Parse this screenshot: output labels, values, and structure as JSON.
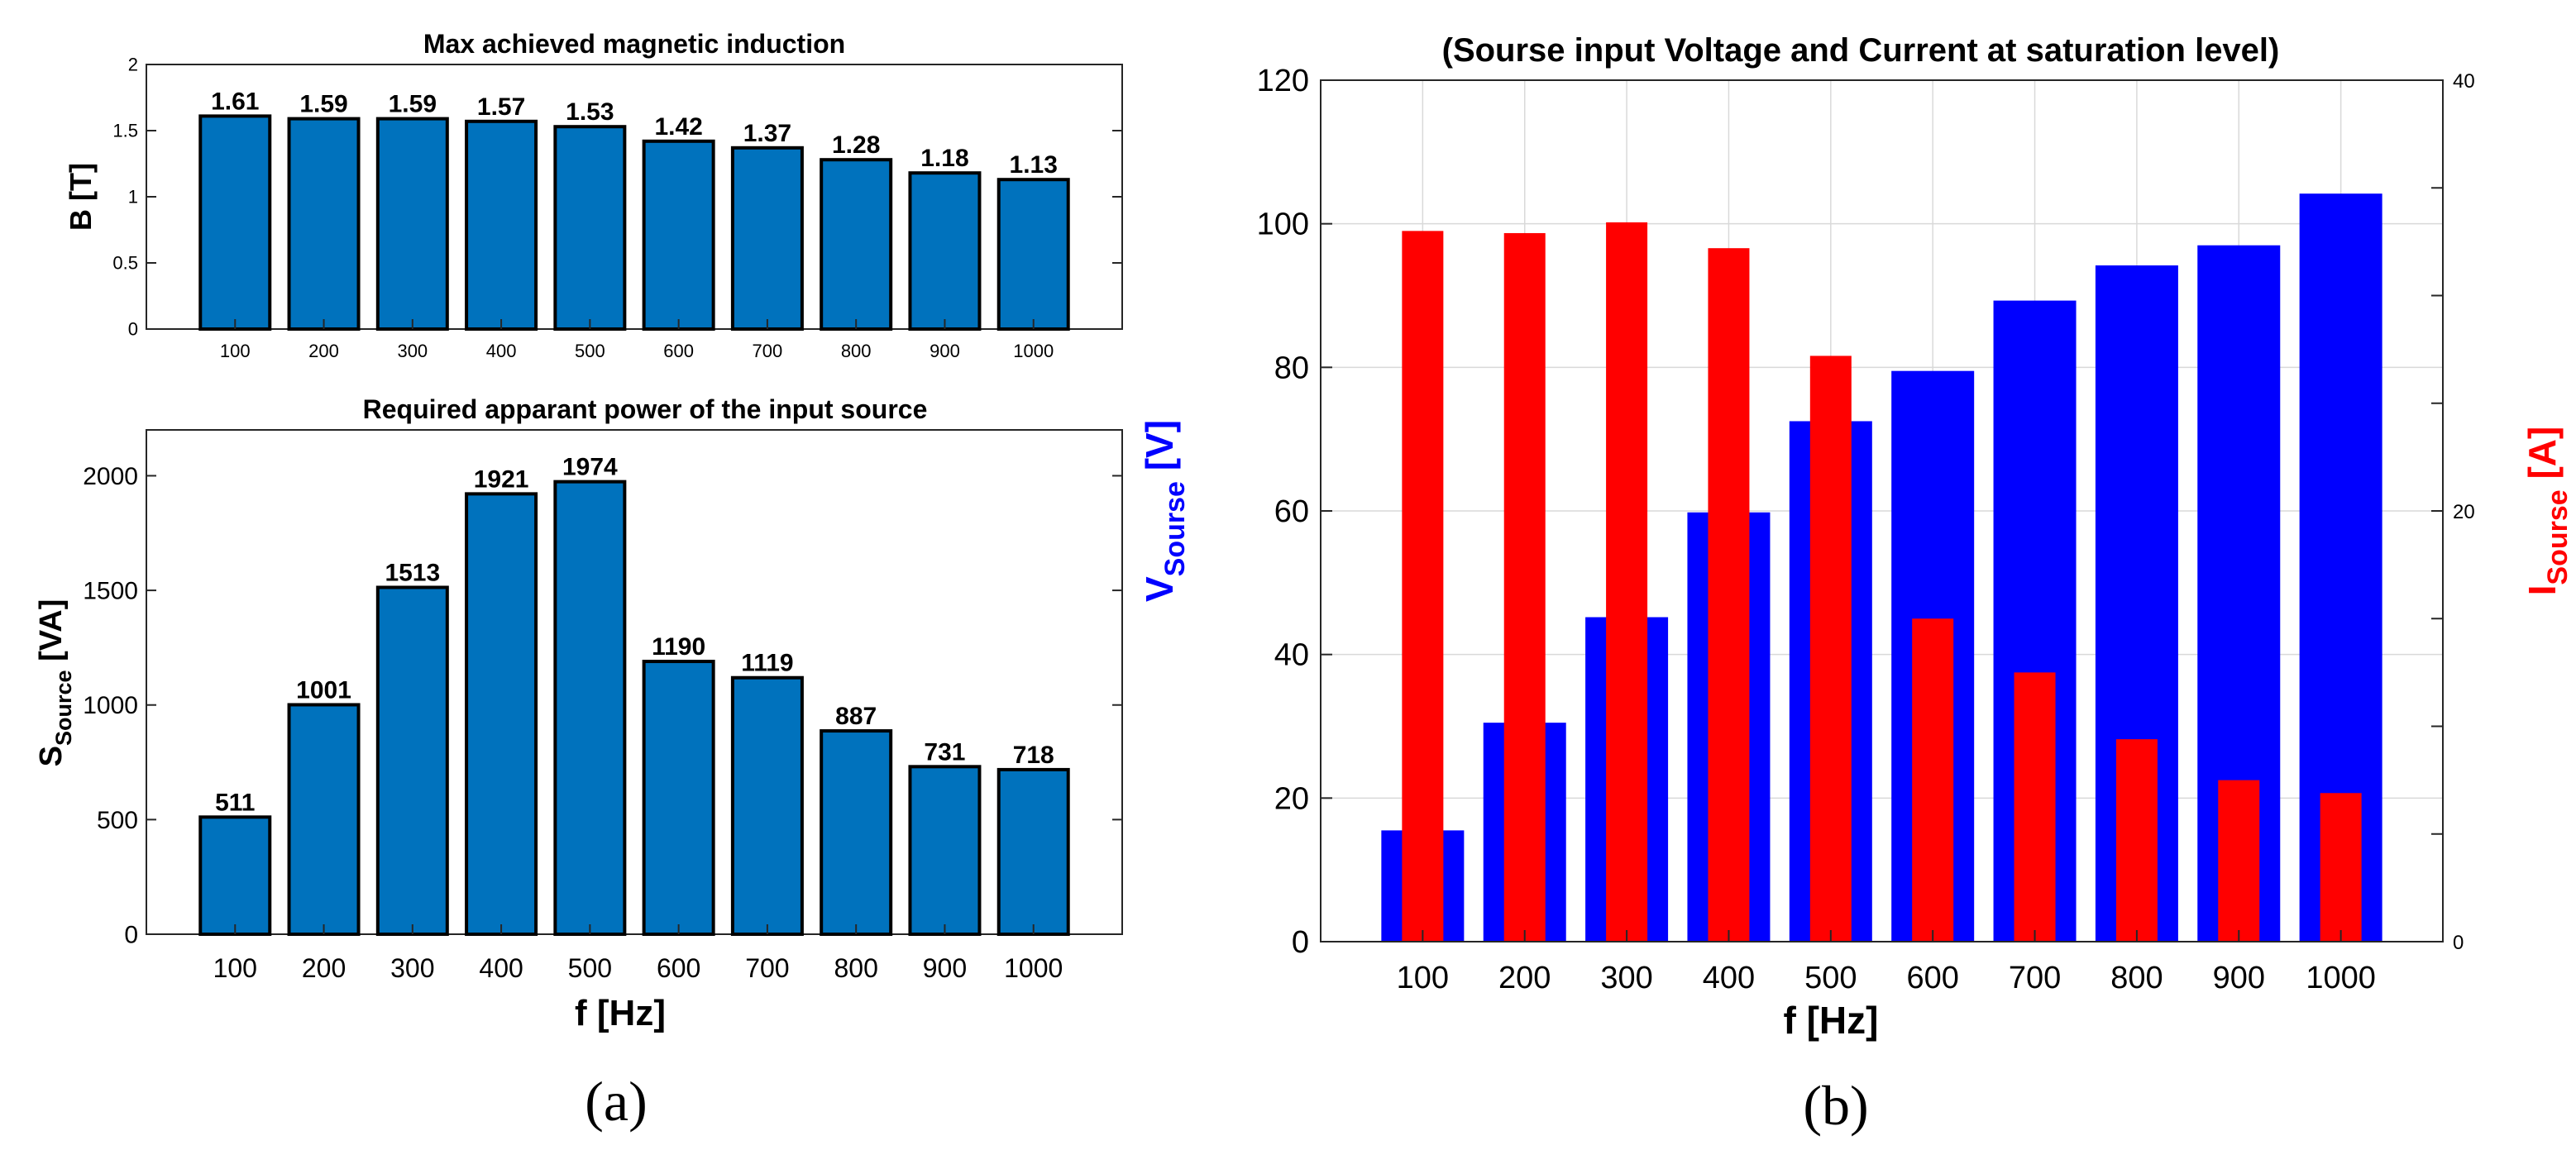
{
  "chart_data": [
    {
      "id": "b",
      "type": "bar",
      "title": "Max achieved magnetic induction",
      "xlabel": "",
      "ylabel": "B [T]",
      "categories": [
        "100",
        "200",
        "300",
        "400",
        "500",
        "600",
        "700",
        "800",
        "900",
        "1000"
      ],
      "values": [
        1.61,
        1.59,
        1.59,
        1.57,
        1.53,
        1.42,
        1.37,
        1.28,
        1.18,
        1.13
      ],
      "data_labels": [
        "1.61",
        "1.59",
        "1.59",
        "1.57",
        "1.53",
        "1.42",
        "1.37",
        "1.28",
        "1.18",
        "1.13"
      ],
      "ylim": [
        0,
        2
      ],
      "yticks": [
        0,
        0.5,
        1,
        1.5,
        2
      ],
      "ytick_labels": [
        "0",
        "0.5",
        "1",
        "1.5",
        "2"
      ],
      "color": "#0072BD"
    },
    {
      "id": "s",
      "type": "bar",
      "title": "Required apparant power of the input source",
      "xlabel": "f [Hz]",
      "ylabel": "S",
      "ylabel_sub": "Source",
      "ylabel_unit": " [VA]",
      "categories": [
        "100",
        "200",
        "300",
        "400",
        "500",
        "600",
        "700",
        "800",
        "900",
        "1000"
      ],
      "values": [
        511,
        1001,
        1513,
        1921,
        1974,
        1190,
        1119,
        887,
        731,
        718
      ],
      "data_labels": [
        "511",
        "1001",
        "1513",
        "1921",
        "1974",
        "1190",
        "1119",
        "887",
        "731",
        "718"
      ],
      "ylim": [
        0,
        2200
      ],
      "yticks": [
        0,
        500,
        1000,
        1500,
        2000
      ],
      "ytick_labels": [
        "0",
        "500",
        "1000",
        "1500",
        "2000"
      ],
      "color": "#0072BD"
    },
    {
      "id": "vi",
      "type": "bar",
      "title": "(Sourse input Voltage and Current at saturation level)",
      "xlabel": "f [Hz]",
      "categories": [
        "100",
        "200",
        "300",
        "400",
        "500",
        "600",
        "700",
        "800",
        "900",
        "1000"
      ],
      "series": [
        {
          "name": "V_Sourse",
          "axis": "left",
          "color": "#0000FF",
          "values": [
            15.5,
            30.5,
            45.2,
            59.8,
            72.5,
            79.5,
            89.3,
            94.2,
            97.0,
            104.2
          ]
        },
        {
          "name": "I_Sourse",
          "axis": "right",
          "color": "#FF0000",
          "values": [
            33.0,
            32.9,
            33.4,
            32.2,
            27.2,
            15.0,
            12.5,
            9.4,
            7.5,
            6.9
          ]
        }
      ],
      "ylabel_left": "V",
      "ylabel_left_sub": "Sourse",
      "ylabel_left_unit": " [V]",
      "ylabel_right": "I",
      "ylabel_right_sub": "Sourse",
      "ylabel_right_unit": " [A]",
      "ylim_left": [
        0,
        120
      ],
      "ylim_right": [
        0,
        40
      ],
      "yticks_left": [
        0,
        20,
        40,
        60,
        80,
        100,
        120
      ],
      "ytick_labels_left": [
        "0",
        "20",
        "40",
        "60",
        "80",
        "100",
        "120"
      ],
      "yticks_right": [
        0,
        20,
        40
      ],
      "ytick_labels_right": [
        "0",
        "20",
        "40"
      ],
      "grid": true
    }
  ],
  "panel_labels": {
    "a": "(a)",
    "b": "(b)"
  }
}
